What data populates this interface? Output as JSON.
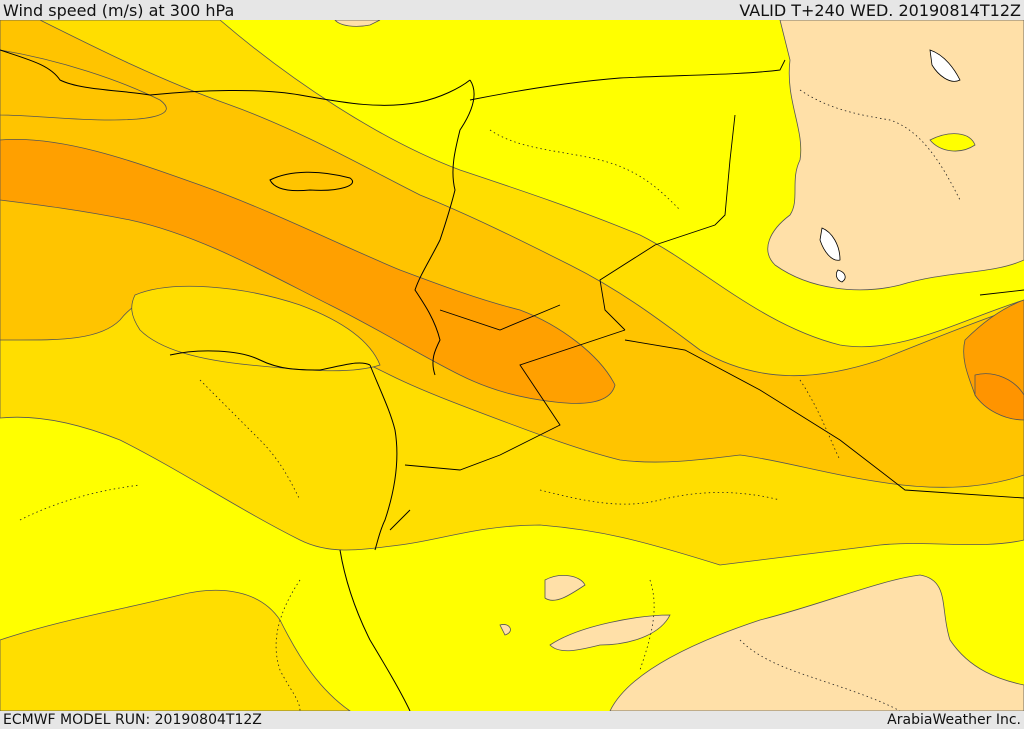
{
  "header": {
    "title": "Wind speed (m/s) at 300 hPa",
    "valid": "VALID T+240 WED. 20190814T12Z"
  },
  "footer": {
    "model_run": "ECMWF MODEL RUN: 20190804T12Z",
    "credit": "ArabiaWeather Inc."
  },
  "map": {
    "field": "wind_speed_300hPa",
    "colors": {
      "band_1": "#ffe0a8",
      "band_2": "#ffff00",
      "band_3": "#ffde00",
      "band_4": "#ffc400",
      "band_5": "#ffa000",
      "coast": "#000000",
      "contour": "#555555"
    }
  }
}
